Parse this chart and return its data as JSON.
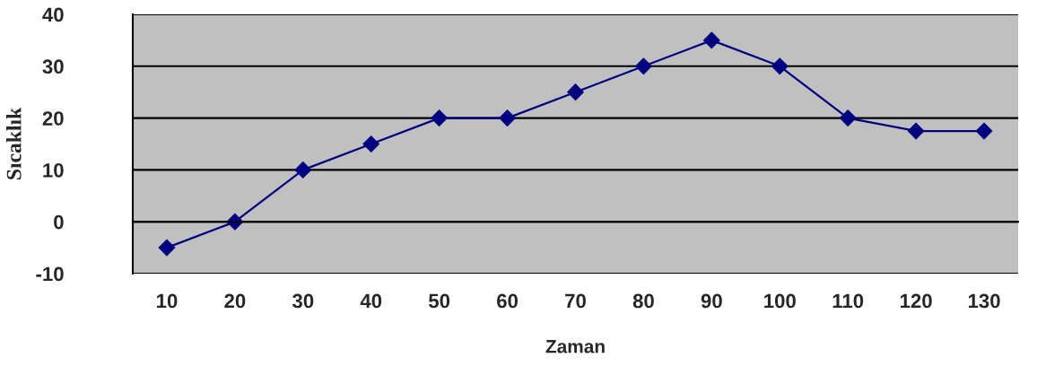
{
  "chart_data": {
    "type": "line",
    "xlabel": "Zaman",
    "ylabel": "Sıcaklık",
    "categories": [
      "10",
      "20",
      "30",
      "40",
      "50",
      "60",
      "70",
      "80",
      "90",
      "100",
      "110",
      "120",
      "130"
    ],
    "series": [
      {
        "color": "#000080",
        "values": [
          -5,
          0,
          10,
          15,
          20,
          20,
          25,
          30,
          35,
          30,
          20,
          17.5,
          17.5
        ]
      }
    ],
    "ylim": [
      -10,
      40
    ],
    "yticks": [
      -10,
      0,
      10,
      20,
      30,
      40
    ],
    "grid": "y",
    "marker": "diamond",
    "line_style": "solid"
  }
}
